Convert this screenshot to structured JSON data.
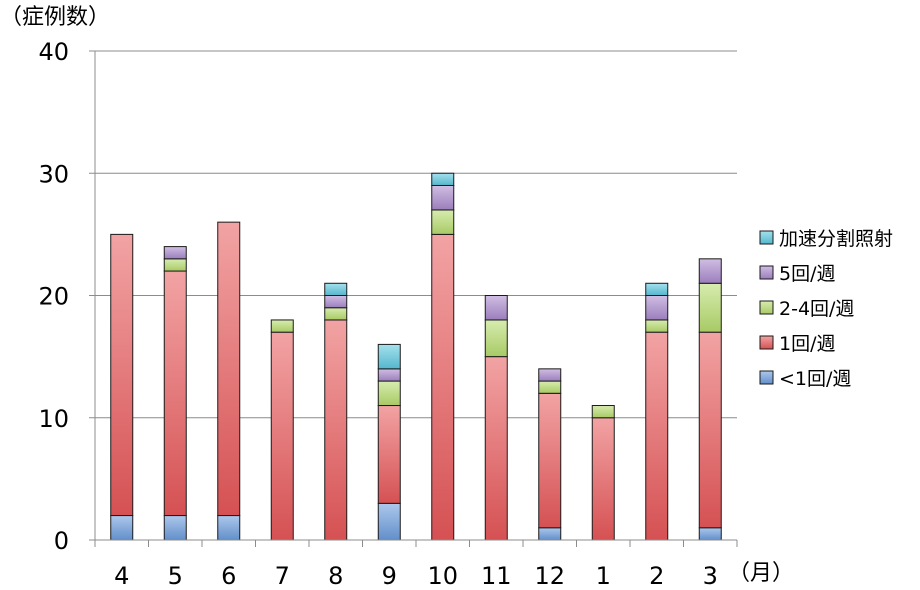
{
  "chart_data": {
    "type": "bar",
    "stacked": true,
    "ylabel": "（症例数）",
    "xlabel": "（月）",
    "ylim": [
      0,
      40
    ],
    "yticks": [
      0,
      10,
      20,
      30,
      40
    ],
    "grid": true,
    "legend_position": "right",
    "categories": [
      "4",
      "5",
      "6",
      "7",
      "8",
      "9",
      "10",
      "11",
      "12",
      "1",
      "2",
      "3"
    ],
    "series": [
      {
        "name": "<1回/週",
        "color": "#6a9bdc",
        "values": [
          2,
          2,
          2,
          0,
          0,
          3,
          0,
          0,
          1,
          0,
          0,
          1
        ]
      },
      {
        "name": "1回/週",
        "color": "#e8585a",
        "values": [
          23,
          20,
          24,
          17,
          18,
          8,
          25,
          15,
          11,
          10,
          17,
          16
        ]
      },
      {
        "name": "2-4回/週",
        "color": "#b7dc6e",
        "values": [
          0,
          1,
          0,
          1,
          1,
          2,
          2,
          3,
          1,
          1,
          1,
          4
        ]
      },
      {
        "name": "5回/週",
        "color": "#a989cc",
        "values": [
          0,
          1,
          0,
          0,
          1,
          1,
          2,
          2,
          1,
          0,
          2,
          2
        ]
      },
      {
        "name": "加速分割照射",
        "color": "#5bc7df",
        "values": [
          0,
          0,
          0,
          0,
          1,
          2,
          1,
          0,
          0,
          0,
          1,
          0
        ]
      }
    ]
  }
}
